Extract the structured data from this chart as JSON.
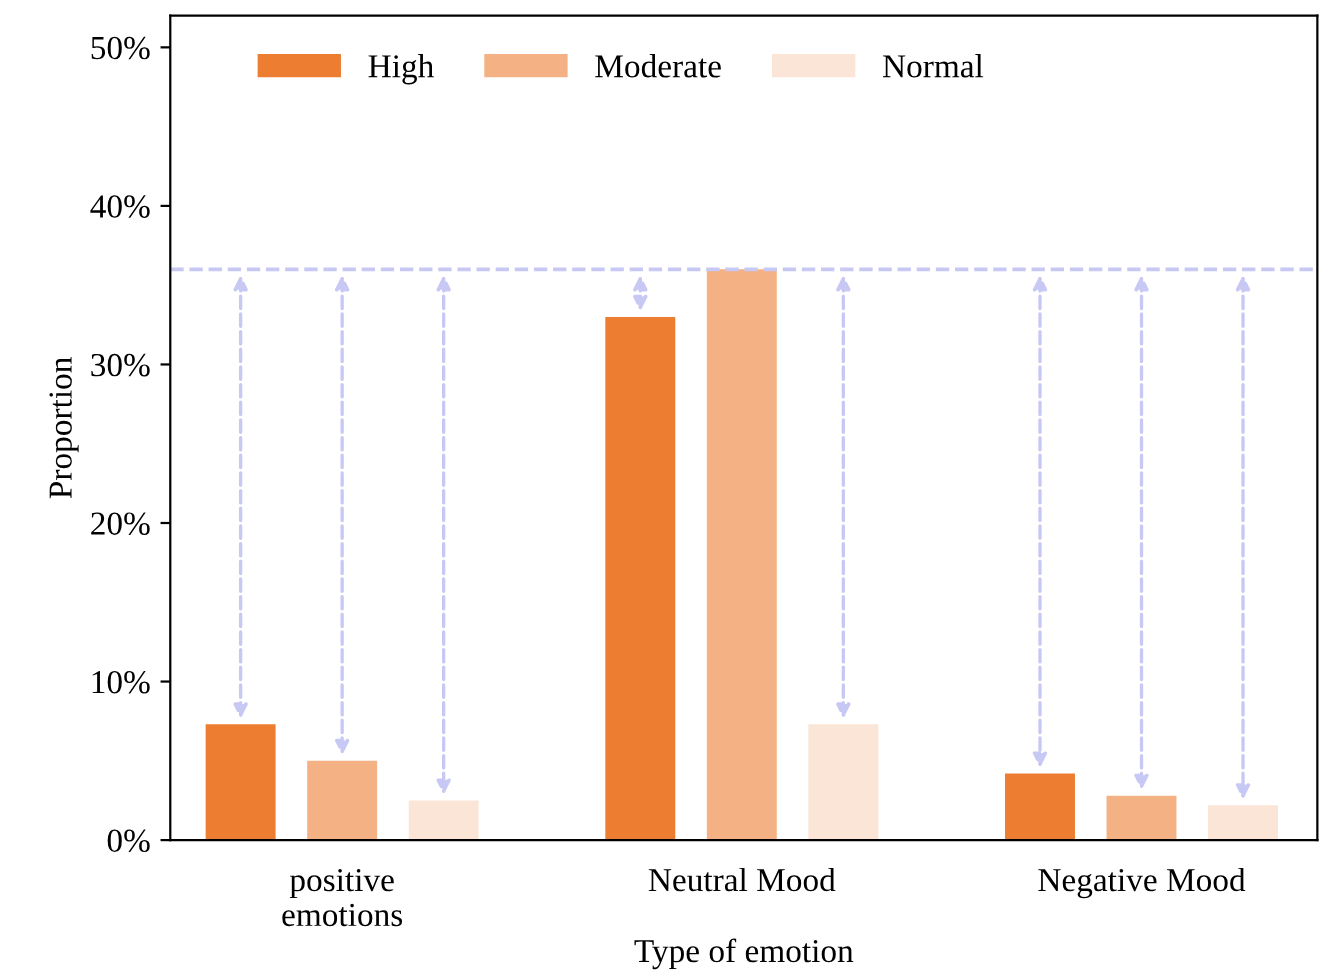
{
  "chart_data": {
    "type": "bar",
    "xlabel": "Type of emotion",
    "ylabel": "Proportion",
    "categories": [
      "positive\nemotions",
      "Neutral Mood",
      "Negative Mood"
    ],
    "series": [
      {
        "name": "High",
        "color": "#ed7d31",
        "values": [
          7.3,
          33,
          4.2
        ]
      },
      {
        "name": "Moderate",
        "color": "#f4b183",
        "values": [
          5.0,
          36,
          2.8
        ]
      },
      {
        "name": "Normal",
        "color": "#fbe5d6",
        "values": [
          2.5,
          7.3,
          2.2
        ]
      }
    ],
    "ylim": [
      0,
      52
    ],
    "yticks": [
      {
        "value": 0,
        "label": "0%"
      },
      {
        "value": 10,
        "label": "10%"
      },
      {
        "value": 20,
        "label": "20%"
      },
      {
        "value": 30,
        "label": "30%"
      },
      {
        "value": 40,
        "label": "40%"
      },
      {
        "value": 50,
        "label": "50%"
      }
    ],
    "ref_lines": [
      {
        "axis": "y",
        "value": 36,
        "color": "#c8c8f5",
        "line_style": "dashed"
      }
    ],
    "legend": "top left",
    "grid": false
  }
}
